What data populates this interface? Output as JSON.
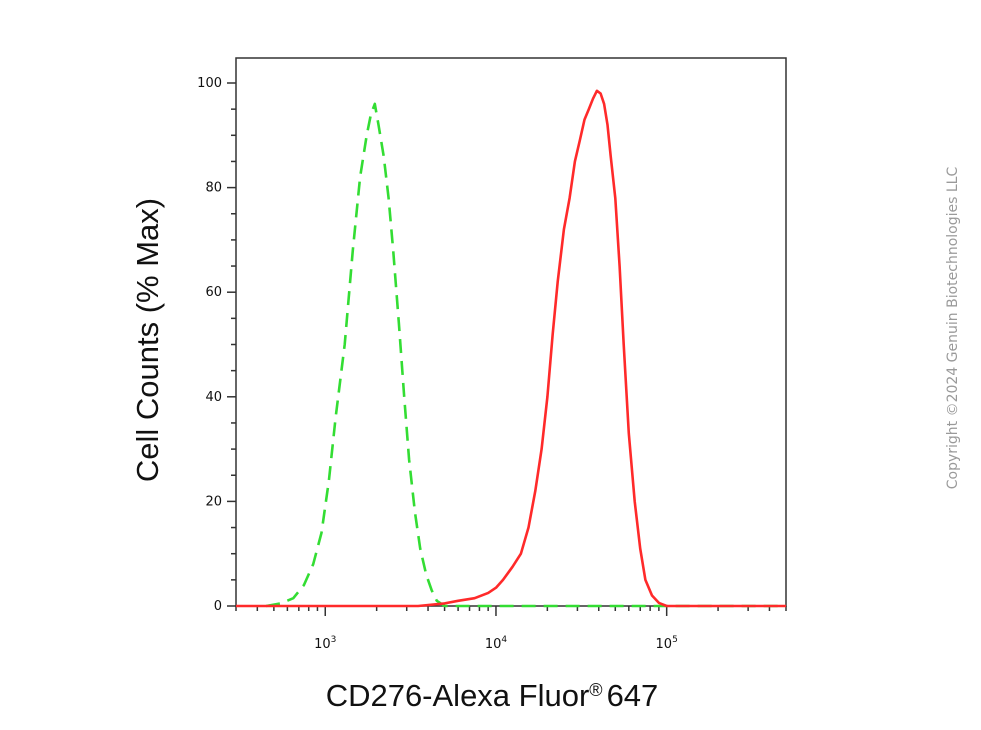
{
  "chart_data": {
    "type": "line",
    "xlabel": "CD276-Alexa Fluor",
    "xlabel_suffix": "647",
    "xlabel_mark": "®",
    "ylabel": "Cell Counts (% Max)",
    "xscale": "log",
    "xlim": [
      300,
      500000
    ],
    "ylim": [
      0,
      105
    ],
    "y_ticks": [
      0,
      20,
      40,
      60,
      80,
      100
    ],
    "y_tick_labels": [
      "0",
      "20",
      "40",
      "60",
      "80",
      "100"
    ],
    "x_ticks": [
      {
        "value": 1000,
        "base": "10",
        "exp": "3"
      },
      {
        "value": 10000,
        "base": "10",
        "exp": "4"
      },
      {
        "value": 100000,
        "base": "10",
        "exp": "5"
      }
    ],
    "grid": false,
    "legend": "none",
    "series": [
      {
        "color": "#33dd33",
        "dash": true,
        "x": [
          450,
          550,
          650,
          750,
          850,
          950,
          1050,
          1150,
          1300,
          1450,
          1600,
          1750,
          1850,
          1950,
          2050,
          2200,
          2350,
          2500,
          2700,
          2900,
          3100,
          3350,
          3600,
          3900,
          4200,
          4500,
          5000,
          20000,
          100000,
          500000
        ],
        "y": [
          0,
          0.5,
          1.5,
          4,
          8,
          14,
          24,
          36,
          50,
          68,
          82,
          90,
          94,
          96,
          92,
          86,
          78,
          68,
          54,
          40,
          28,
          18,
          11,
          6,
          3,
          1,
          0,
          0,
          0,
          0
        ]
      },
      {
        "color": "#ff2a2a",
        "dash": false,
        "x": [
          300,
          3500,
          5000,
          6000,
          7500,
          9000,
          10000,
          11000,
          12500,
          14000,
          15500,
          17000,
          18500,
          20000,
          21500,
          23000,
          25000,
          27000,
          29000,
          31000,
          33000,
          35000,
          37000,
          39000,
          41000,
          43000,
          45000,
          47000,
          50000,
          53000,
          56000,
          60000,
          65000,
          70000,
          75000,
          82000,
          90000,
          100000,
          200000,
          500000
        ],
        "y": [
          0,
          0,
          0.5,
          1,
          1.5,
          2.5,
          3.5,
          5,
          7.5,
          10,
          15,
          22,
          30,
          40,
          52,
          62,
          72,
          78,
          85,
          89,
          93,
          95,
          97,
          98.5,
          98,
          96,
          92,
          86,
          78,
          65,
          50,
          33,
          20,
          11,
          5,
          2,
          0.6,
          0,
          0,
          0
        ]
      }
    ]
  },
  "copyright": "Copyright ©2024 Genuin Biotechnologies LLC"
}
